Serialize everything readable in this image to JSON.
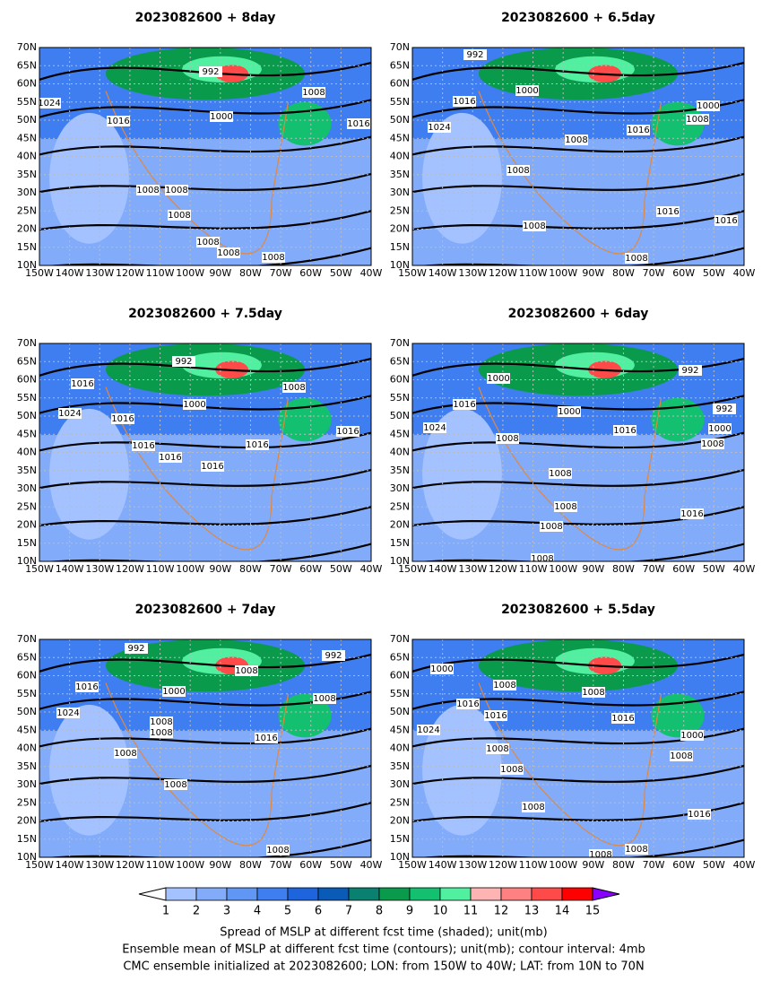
{
  "panels": [
    {
      "title": "2023082600  +  8day",
      "contour_labels": [
        "992",
        "1008",
        "1000",
        "1016",
        "1024",
        "1016",
        "1008",
        "1008",
        "1008",
        "1008",
        "1008",
        "1008"
      ]
    },
    {
      "title": "2023082600  +  6.5day",
      "contour_labels": [
        "992",
        "1000",
        "1016",
        "1024",
        "1008",
        "1016",
        "1008",
        "1000",
        "1008",
        "1016",
        "1016",
        "1008",
        "1008"
      ]
    },
    {
      "title": "2023082600  +  7.5day",
      "contour_labels": [
        "992",
        "1016",
        "1024",
        "1016",
        "1000",
        "1008",
        "1016",
        "1016",
        "1016",
        "1016",
        "1016"
      ]
    },
    {
      "title": "2023082600  +  6day",
      "contour_labels": [
        "1000",
        "992",
        "1016",
        "1000",
        "1024",
        "1008",
        "1016",
        "992",
        "1000",
        "1008",
        "1008",
        "1008",
        "1008",
        "1016",
        "1008"
      ]
    },
    {
      "title": "2023082600  +  7day",
      "contour_labels": [
        "992",
        "992",
        "1008",
        "1016",
        "1000",
        "1008",
        "1024",
        "1008",
        "1008",
        "1016",
        "1008",
        "1008",
        "1008"
      ]
    },
    {
      "title": "2023082600  +  5.5day",
      "contour_labels": [
        "1000",
        "1008",
        "1008",
        "1016",
        "1016",
        "1016",
        "1024",
        "1000",
        "1008",
        "1008",
        "1008",
        "1008",
        "1016",
        "1008",
        "1008"
      ]
    }
  ],
  "lat_ticks": [
    "70N",
    "65N",
    "60N",
    "55N",
    "50N",
    "45N",
    "40N",
    "35N",
    "30N",
    "25N",
    "20N",
    "15N",
    "10N"
  ],
  "lon_ticks": [
    "150W",
    "140W",
    "130W",
    "120W",
    "110W",
    "100W",
    "90W",
    "80W",
    "70W",
    "60W",
    "50W",
    "40W"
  ],
  "colorbar": {
    "levels": [
      "1",
      "2",
      "3",
      "4",
      "5",
      "6",
      "7",
      "8",
      "9",
      "10",
      "11",
      "12",
      "13",
      "14",
      "15"
    ],
    "colors": [
      "#ffffff",
      "#a3c2ff",
      "#82acfa",
      "#6096f4",
      "#3f7ef0",
      "#1e64dc",
      "#0a5ab8",
      "#0a8070",
      "#0a9a4c",
      "#12c070",
      "#50f0a0",
      "#ffb4b4",
      "#ff8080",
      "#ff4a4a",
      "#ff0000",
      "#ff00ff",
      "#8a00ff"
    ]
  },
  "caption": [
    "Spread of MSLP at different fcst time (shaded); unit(mb)",
    "Ensemble mean of MSLP at different fcst time (contours); unit(mb); contour interval: 4mb",
    "CMC ensemble initialized at 2023082600; LON: from 150W to 40W; LAT: from 10N to 70N"
  ]
}
